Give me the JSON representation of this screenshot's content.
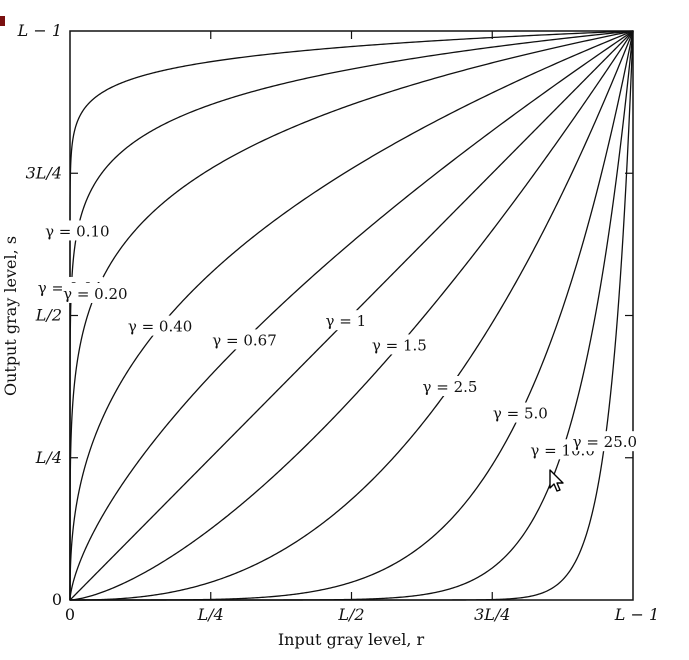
{
  "chart_data": {
    "type": "line",
    "xlabel": "Input gray level, r",
    "ylabel": "Output gray level, s",
    "xlim": [
      0,
      1
    ],
    "ylim": [
      0,
      1
    ],
    "x_ticks": [
      {
        "value": 0,
        "label": "0"
      },
      {
        "value": 0.25,
        "label": "L/4"
      },
      {
        "value": 0.5,
        "label": "L/2"
      },
      {
        "value": 0.75,
        "label": "3L/4"
      },
      {
        "value": 1,
        "label": "L − 1"
      }
    ],
    "y_ticks": [
      {
        "value": 0,
        "label": "0"
      },
      {
        "value": 0.25,
        "label": "L/4"
      },
      {
        "value": 0.5,
        "label": "L/2"
      },
      {
        "value": 0.75,
        "label": "3L/4"
      },
      {
        "value": 1,
        "label": "L − 1"
      }
    ],
    "series": [
      {
        "gamma": 0.04,
        "label": "γ = 0.04"
      },
      {
        "gamma": 0.1,
        "label": "γ = 0.10"
      },
      {
        "gamma": 0.2,
        "label": "γ = 0.20"
      },
      {
        "gamma": 0.4,
        "label": "γ = 0.40"
      },
      {
        "gamma": 0.67,
        "label": "γ = 0.67"
      },
      {
        "gamma": 1,
        "label": "γ = 1"
      },
      {
        "gamma": 1.5,
        "label": "γ = 1.5"
      },
      {
        "gamma": 2.5,
        "label": "γ = 2.5"
      },
      {
        "gamma": 5.0,
        "label": "γ = 5.0"
      },
      {
        "gamma": 10.0,
        "label": "γ = 10.0"
      },
      {
        "gamma": 25.0,
        "label": "γ = 25.0"
      }
    ],
    "grid": false,
    "legend": "none",
    "colors": {
      "curve": "#111111",
      "background": "#ffffff",
      "corner_mark": "#7a1010"
    },
    "icons": [
      "mouse-pointer-icon"
    ]
  }
}
